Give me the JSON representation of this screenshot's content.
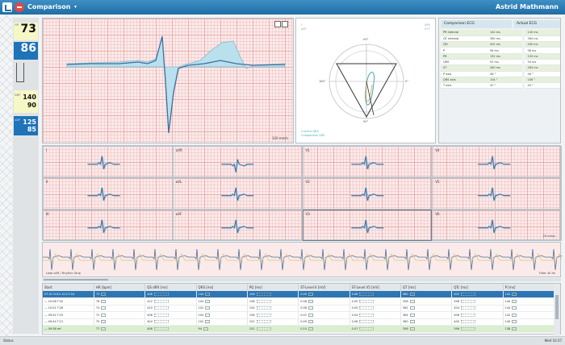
{
  "app": {
    "title": "Comparison",
    "patient": "Astrid Mathmann"
  },
  "vitals": {
    "hr": "73",
    "spo2": "86",
    "hr_label": "HR",
    "nbp_label": "NBP",
    "nbp_sys": "140",
    "nbp_dia": "90",
    "abp_label": "ABP",
    "abp_sys": "125",
    "abp_dia": "85"
  },
  "beat_panel": {
    "footer": "100 mm/s"
  },
  "vector": {
    "top_left": [
      "I",
      "aVF"
    ],
    "top_right": [
      "QRS",
      "ST-T"
    ],
    "legend": [
      "Current QRS",
      "Comparison QRS"
    ],
    "angles": {
      "top": "-90°",
      "left": "180°",
      "right": "0°",
      "bottom": "90°"
    }
  },
  "measurements": {
    "header_comparison": "Comparison ECG",
    "header_actual": "Actual ECG",
    "rows": [
      {
        "label": "PR interval",
        "comp": "144 ms",
        "act": "140 ms"
      },
      {
        "label": "QT interval",
        "comp": "360 ms",
        "act": "364 ms"
      },
      {
        "label": "QTc",
        "comp": "402 ms",
        "act": "405 ms"
      },
      {
        "label": "P",
        "comp": "96 ms",
        "act": "98 ms"
      },
      {
        "label": "PR",
        "comp": "152 ms",
        "act": "150 ms"
      },
      {
        "label": "QRS",
        "comp": "92 ms",
        "act": "94 ms"
      },
      {
        "label": "ST",
        "comp": "280 ms",
        "act": "284 ms"
      },
      {
        "label": "P axis",
        "comp": "48 °",
        "act": "46 °"
      },
      {
        "label": "QRS axis",
        "comp": "104 °",
        "act": "106 °"
      },
      {
        "label": "T axis",
        "comp": "42 °",
        "act": "40 °"
      }
    ]
  },
  "leads": {
    "labels": [
      "I",
      "aVR",
      "V1",
      "V4",
      "II",
      "aVL",
      "V2",
      "V5",
      "III",
      "aVF",
      "V3",
      "V6"
    ],
    "footer": "25 mm/s"
  },
  "rhythm": {
    "left": "Lead aVR / Rhythm Strip",
    "right": "Filter 40 Hz"
  },
  "list": {
    "columns": [
      "Start",
      "HR [bpm]",
      "QS dRR [ms]",
      "QRS [ms]",
      "PQ [ms]",
      "ST-Level II [mV]",
      "ST-Level V5 [mV]",
      "QT [ms]",
      "QTc [ms]",
      "P [ms]"
    ],
    "rows": [
      {
        "start": "07.07.2010 10:17:34",
        "v": [
          "73",
          "408",
          "104",
          "156",
          "0.09",
          "0.06",
          "360",
          "402",
          "142"
        ],
        "style": "sel"
      },
      {
        "start": "— 10:08 T:32",
        "v": [
          "76",
          "412",
          "104",
          "158",
          "0.08",
          "0.05",
          "358",
          "398",
          "140"
        ],
        "style": ""
      },
      {
        "start": "— 10:01 T:28",
        "v": [
          "74",
          "410",
          "102",
          "154",
          "0.08",
          "0.05",
          "362",
          "404",
          "144"
        ],
        "style": ""
      },
      {
        "start": "— 09:52 T:25",
        "v": [
          "72",
          "406",
          "104",
          "156",
          "0.07",
          "0.04",
          "364",
          "406",
          "142"
        ],
        "style": ""
      },
      {
        "start": "— 09:44 T:21",
        "v": [
          "75",
          "404",
          "102",
          "152",
          "0.09",
          "0.06",
          "360",
          "400",
          "140"
        ],
        "style": ""
      },
      {
        "start": "— 09:38 ref",
        "v": [
          "77",
          "408",
          "94",
          "152",
          "0.10",
          "0.07",
          "356",
          "396",
          "138"
        ],
        "style": "green"
      }
    ]
  },
  "status": {
    "left": "Status",
    "right": "Wed 10:37"
  },
  "colors": {
    "accent": "#2d76b3",
    "wave_current": "#3f6fa0",
    "wave_compare": "#9ccde0",
    "grid": "#e29696"
  }
}
